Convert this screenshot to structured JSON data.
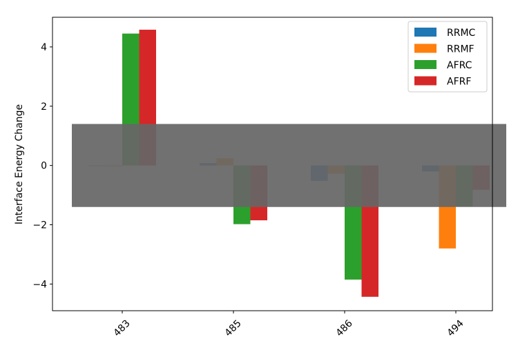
{
  "chart_data": {
    "type": "bar",
    "title": "",
    "xlabel": "",
    "ylabel": "Interface Energy Change",
    "categories": [
      "483",
      "485",
      "486",
      "494"
    ],
    "series": [
      {
        "name": "RRMC",
        "color": "#1f77b4",
        "values": [
          0.0,
          0.08,
          -0.52,
          -0.2
        ]
      },
      {
        "name": "RRMF",
        "color": "#ff7f0e",
        "values": [
          -0.02,
          0.24,
          -0.28,
          -2.8
        ]
      },
      {
        "name": "AFRC",
        "color": "#2ca02c",
        "values": [
          4.45,
          -1.98,
          -3.85,
          -1.38
        ]
      },
      {
        "name": "AFRF",
        "color": "#d62728",
        "values": [
          4.58,
          -1.85,
          -4.43,
          -0.82
        ]
      }
    ],
    "ylim": [
      -4.9,
      5.0
    ],
    "yticks": [
      -4,
      -2,
      0,
      2,
      4
    ],
    "ytick_labels": [
      "−4",
      "−2",
      "0",
      "2",
      "4"
    ],
    "shaded_band": {
      "y_range": [
        -1.4,
        1.4
      ],
      "color": "#666666",
      "opacity": 0.93
    },
    "legend": {
      "placement": "top-right"
    },
    "grid": false,
    "xtick_rotation_deg": 45
  }
}
